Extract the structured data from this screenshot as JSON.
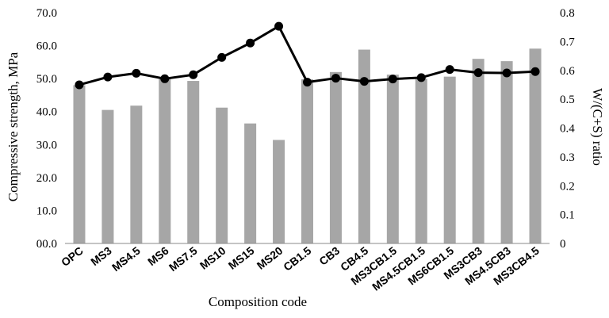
{
  "chart_data": {
    "type": "bar",
    "categories": [
      "OPC",
      "MS3",
      "MS4.5",
      "MS6",
      "MS7.5",
      "MS10",
      "MS15",
      "MS20",
      "CB1.5",
      "CB3",
      "CB4.5",
      "MS3CB1.5",
      "MS4.5CB1.5",
      "MS6CB1.5",
      "MS3CB3",
      "MS4.5CB3",
      "MS3CB4.5"
    ],
    "series": [
      {
        "type": "bar",
        "axis": "left",
        "values": [
          48.0,
          40.5,
          41.8,
          50.5,
          49.3,
          41.2,
          36.4,
          31.4,
          49.8,
          52.0,
          58.8,
          51.2,
          50.0,
          50.6,
          56.0,
          55.3,
          59.1
        ],
        "color": "#a6a6a6"
      },
      {
        "type": "line",
        "axis": "right",
        "values": [
          0.55,
          0.577,
          0.59,
          0.571,
          0.585,
          0.645,
          0.695,
          0.753,
          0.559,
          0.573,
          0.562,
          0.57,
          0.575,
          0.603,
          0.592,
          0.591,
          0.596
        ],
        "color": "#000000"
      }
    ],
    "xlabel": "Composition code",
    "ylabel": "Compressive strength, MPa",
    "y2label": "W/(C+S) ratio",
    "ylim": [
      0,
      70
    ],
    "y2lim": [
      0,
      0.8
    ],
    "yticks": [
      "00.0",
      "10.0",
      "20.0",
      "30.0",
      "40.0",
      "50.0",
      "60.0",
      "70.0"
    ],
    "y2ticks": [
      "0",
      "0.1",
      "0.2",
      "0.3",
      "0.4",
      "0.5",
      "0.6",
      "0.7",
      "0.8"
    ],
    "grid": false,
    "legend": "none"
  }
}
